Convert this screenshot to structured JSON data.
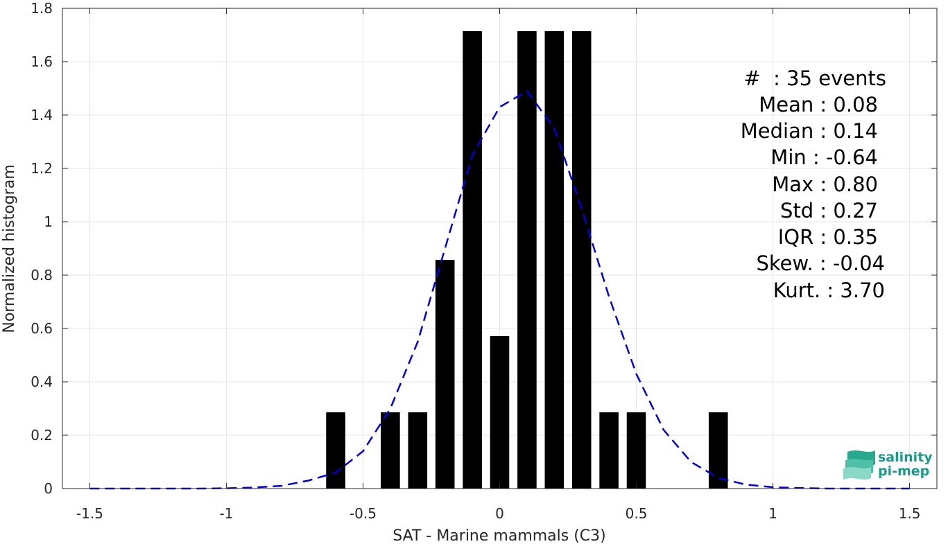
{
  "chart_data": {
    "type": "bar",
    "xlabel": "SAT - Marine mammals (C3)",
    "ylabel": "Normalized histogram",
    "xlim": [
      -1.6,
      1.6
    ],
    "ylim": [
      0,
      1.8
    ],
    "xticks": [
      -1.5,
      -1,
      -0.5,
      0,
      0.5,
      1,
      1.5
    ],
    "xtick_labels": [
      "-1.5",
      "-1",
      "-0.5",
      "0",
      "0.5",
      "1",
      "1.5"
    ],
    "yticks": [
      0,
      0.2,
      0.4,
      0.6,
      0.8,
      1,
      1.2,
      1.4,
      1.6,
      1.8
    ],
    "ytick_labels": [
      "0",
      "0.2",
      "0.4",
      "0.6",
      "0.8",
      "1",
      "1.2",
      "1.4",
      "1.6",
      "1.8"
    ],
    "grid": true,
    "bar_width": 0.07,
    "bar_color": "#000000",
    "bars": [
      {
        "x": -0.6,
        "y": 0.2857
      },
      {
        "x": -0.5,
        "y": 0
      },
      {
        "x": -0.4,
        "y": 0.2857
      },
      {
        "x": -0.3,
        "y": 0.2857
      },
      {
        "x": -0.2,
        "y": 0.8571
      },
      {
        "x": -0.1,
        "y": 1.7143
      },
      {
        "x": 0.0,
        "y": 0.5714
      },
      {
        "x": 0.1,
        "y": 1.7143
      },
      {
        "x": 0.2,
        "y": 1.7143
      },
      {
        "x": 0.3,
        "y": 1.7143
      },
      {
        "x": 0.4,
        "y": 0.2857
      },
      {
        "x": 0.5,
        "y": 0.2857
      },
      {
        "x": 0.8,
        "y": 0.2857
      }
    ],
    "fit_curve": {
      "color": "#0000dd",
      "style": "dashed",
      "x": [
        -1.5,
        -1.4,
        -1.3,
        -1.2,
        -1.1,
        -1.0,
        -0.9,
        -0.8,
        -0.7,
        -0.6,
        -0.5,
        -0.4,
        -0.3,
        -0.2,
        -0.1,
        0.0,
        0.1,
        0.2,
        0.3,
        0.4,
        0.5,
        0.6,
        0.7,
        0.8,
        0.9,
        1.0,
        1.1,
        1.2,
        1.3,
        1.4,
        1.5
      ],
      "y": [
        0,
        0,
        0,
        0,
        0,
        0.001,
        0.004,
        0.01,
        0.03,
        0.06,
        0.14,
        0.3,
        0.55,
        0.9,
        1.25,
        1.43,
        1.49,
        1.35,
        1.05,
        0.72,
        0.43,
        0.22,
        0.1,
        0.04,
        0.015,
        0.005,
        0.002,
        0,
        0,
        0,
        0
      ]
    }
  },
  "stats": [
    "#  : 35 events",
    "Mean : 0.08",
    "Median : 0.14",
    "Min : -0.64",
    "Max : 0.80",
    "Std : 0.27",
    "IQR : 0.35",
    "Skew. : -0.04",
    "Kurt. : 3.70"
  ],
  "logo": {
    "line1": "salinity",
    "line2": "pi-mep",
    "color": "#1a9c8c"
  }
}
